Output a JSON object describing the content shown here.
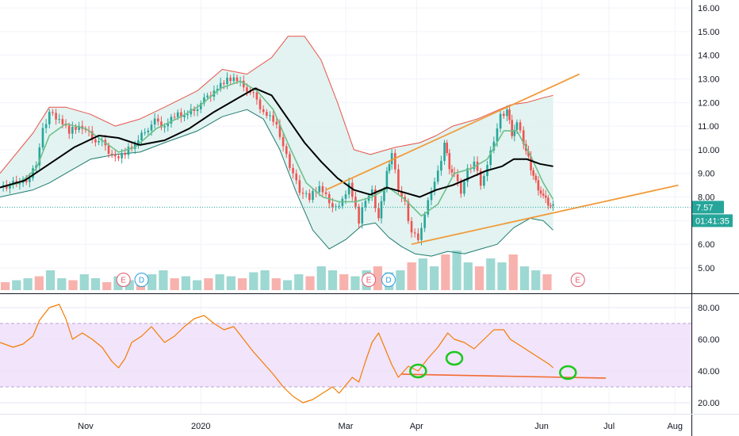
{
  "colors": {
    "candle_up": "#26a69a",
    "candle_down": "#ef5350",
    "vol_up": "#9ed8d2",
    "vol_down": "#f7b2ae",
    "bb_upper": "#e8544b",
    "bb_lower": "#1f7a6f",
    "bb_fill": "#dff2ef",
    "sma_fast": "#6fbf8a",
    "sma_slow": "#000000",
    "trend": "#f29a38",
    "rsi_line": "#f57c00",
    "rsi_band": "#f1e4fb",
    "rsi_band_edge": "#b9a6cf",
    "support": "#f26b2f",
    "marker": "#1ec81e",
    "price_line": "#26a69a",
    "earnings": "#e05a6d",
    "dividend": "#2c9be0"
  },
  "price_badge": {
    "value": "7.57",
    "timer": "01:41:35"
  },
  "flags": [
    {
      "type": "earnings",
      "label": "E",
      "date": 75
    },
    {
      "type": "dividend",
      "label": "D",
      "date": 86
    },
    {
      "type": "earnings",
      "label": "E",
      "date": 224
    },
    {
      "type": "dividend",
      "label": "D",
      "date": 236
    },
    {
      "type": "earnings",
      "label": "E",
      "date": 351
    }
  ],
  "chart_data": [
    {
      "type": "candlestick",
      "panel": "price",
      "ylim": [
        4.4,
        16.4
      ],
      "xlim": [
        0,
        420
      ],
      "yticks": [
        "16.00",
        "15.00",
        "14.00",
        "13.00",
        "12.00",
        "11.00",
        "10.00",
        "9.00",
        "8.00",
        "6.00",
        "5.00"
      ],
      "last_price": 7.57,
      "series_path": {
        "close": [
          [
            0,
            8.4
          ],
          [
            10,
            8.6
          ],
          [
            18,
            8.8
          ],
          [
            22,
            9.4
          ],
          [
            26,
            10.8
          ],
          [
            30,
            11.6
          ],
          [
            36,
            11.3
          ],
          [
            42,
            10.8
          ],
          [
            50,
            11.0
          ],
          [
            56,
            10.5
          ],
          [
            62,
            10.3
          ],
          [
            70,
            9.6
          ],
          [
            76,
            9.9
          ],
          [
            82,
            10.2
          ],
          [
            88,
            10.8
          ],
          [
            94,
            11.2
          ],
          [
            100,
            11.0
          ],
          [
            106,
            11.5
          ],
          [
            112,
            11.4
          ],
          [
            118,
            11.7
          ],
          [
            124,
            12.1
          ],
          [
            130,
            12.5
          ],
          [
            136,
            12.9
          ],
          [
            142,
            13.0
          ],
          [
            148,
            12.7
          ],
          [
            154,
            12.3
          ],
          [
            160,
            11.6
          ],
          [
            166,
            11.3
          ],
          [
            170,
            10.6
          ],
          [
            174,
            9.7
          ],
          [
            178,
            9.0
          ],
          [
            182,
            8.3
          ],
          [
            188,
            8.0
          ],
          [
            194,
            8.4
          ],
          [
            200,
            7.8
          ],
          [
            206,
            7.5
          ],
          [
            212,
            8.6
          ],
          [
            218,
            7.0
          ],
          [
            222,
            7.9
          ],
          [
            226,
            8.2
          ],
          [
            230,
            7.1
          ],
          [
            235,
            9.1
          ],
          [
            238,
            9.8
          ],
          [
            242,
            8.3
          ],
          [
            246,
            7.7
          ],
          [
            250,
            6.5
          ],
          [
            254,
            6.3
          ],
          [
            258,
            7.2
          ],
          [
            262,
            8.3
          ],
          [
            266,
            9.0
          ],
          [
            270,
            10.3
          ],
          [
            273,
            9.3
          ],
          [
            276,
            8.9
          ],
          [
            280,
            8.2
          ],
          [
            284,
            9.1
          ],
          [
            288,
            9.5
          ],
          [
            292,
            8.6
          ],
          [
            296,
            9.3
          ],
          [
            300,
            10.4
          ],
          [
            304,
            11.4
          ],
          [
            308,
            11.7
          ],
          [
            311,
            10.7
          ],
          [
            314,
            11.1
          ],
          [
            318,
            10.3
          ],
          [
            321,
            9.6
          ],
          [
            324,
            8.9
          ],
          [
            327,
            8.4
          ],
          [
            330,
            8.0
          ],
          [
            333,
            7.7
          ],
          [
            336,
            7.57
          ]
        ]
      },
      "bollinger": {
        "upper": [
          [
            0,
            9.0
          ],
          [
            20,
            10.7
          ],
          [
            30,
            11.8
          ],
          [
            40,
            11.8
          ],
          [
            55,
            11.5
          ],
          [
            70,
            11.0
          ],
          [
            85,
            11.3
          ],
          [
            100,
            11.8
          ],
          [
            120,
            12.5
          ],
          [
            135,
            13.4
          ],
          [
            150,
            13.2
          ],
          [
            165,
            13.9
          ],
          [
            175,
            14.8
          ],
          [
            185,
            14.8
          ],
          [
            195,
            13.8
          ],
          [
            205,
            12.0
          ],
          [
            215,
            10.0
          ],
          [
            225,
            9.8
          ],
          [
            240,
            10.1
          ],
          [
            255,
            10.3
          ],
          [
            265,
            10.6
          ],
          [
            275,
            11.0
          ],
          [
            290,
            11.3
          ],
          [
            300,
            11.6
          ],
          [
            310,
            11.9
          ],
          [
            320,
            12.0
          ],
          [
            330,
            12.2
          ],
          [
            336,
            12.3
          ]
        ],
        "lower": [
          [
            0,
            8.0
          ],
          [
            20,
            8.3
          ],
          [
            30,
            8.6
          ],
          [
            40,
            9.0
          ],
          [
            55,
            9.6
          ],
          [
            70,
            9.8
          ],
          [
            85,
            9.9
          ],
          [
            100,
            10.3
          ],
          [
            120,
            10.8
          ],
          [
            135,
            11.4
          ],
          [
            150,
            11.7
          ],
          [
            160,
            11.3
          ],
          [
            170,
            10.0
          ],
          [
            180,
            8.2
          ],
          [
            190,
            6.6
          ],
          [
            200,
            5.8
          ],
          [
            210,
            6.2
          ],
          [
            220,
            6.8
          ],
          [
            228,
            6.9
          ],
          [
            236,
            6.3
          ],
          [
            244,
            5.9
          ],
          [
            252,
            5.6
          ],
          [
            262,
            5.5
          ],
          [
            272,
            5.7
          ],
          [
            282,
            5.6
          ],
          [
            292,
            5.8
          ],
          [
            302,
            6.0
          ],
          [
            312,
            6.7
          ],
          [
            322,
            7.1
          ],
          [
            330,
            7.0
          ],
          [
            336,
            6.6
          ]
        ],
        "sma": [
          [
            0,
            8.4
          ],
          [
            15,
            8.7
          ],
          [
            30,
            9.4
          ],
          [
            45,
            10.1
          ],
          [
            60,
            10.6
          ],
          [
            72,
            10.5
          ],
          [
            85,
            10.2
          ],
          [
            100,
            10.4
          ],
          [
            115,
            10.9
          ],
          [
            130,
            11.6
          ],
          [
            145,
            12.2
          ],
          [
            155,
            12.6
          ],
          [
            165,
            12.3
          ],
          [
            175,
            11.3
          ],
          [
            185,
            10.3
          ],
          [
            195,
            9.5
          ],
          [
            205,
            8.8
          ],
          [
            215,
            8.3
          ],
          [
            225,
            8.1
          ],
          [
            235,
            8.4
          ],
          [
            245,
            8.2
          ],
          [
            255,
            8.0
          ],
          [
            265,
            8.3
          ],
          [
            275,
            8.5
          ],
          [
            285,
            8.8
          ],
          [
            295,
            9.1
          ],
          [
            305,
            9.3
          ],
          [
            312,
            9.6
          ],
          [
            320,
            9.6
          ],
          [
            328,
            9.4
          ],
          [
            336,
            9.3
          ]
        ]
      },
      "sma_fast": [
        [
          0,
          8.4
        ],
        [
          12,
          8.6
        ],
        [
          22,
          9.2
        ],
        [
          30,
          10.6
        ],
        [
          40,
          11.1
        ],
        [
          52,
          10.9
        ],
        [
          64,
          10.3
        ],
        [
          72,
          9.9
        ],
        [
          82,
          10.1
        ],
        [
          95,
          10.9
        ],
        [
          110,
          11.4
        ],
        [
          122,
          11.9
        ],
        [
          134,
          12.6
        ],
        [
          146,
          12.9
        ],
        [
          156,
          12.5
        ],
        [
          166,
          11.7
        ],
        [
          176,
          10.1
        ],
        [
          186,
          8.6
        ],
        [
          196,
          8.0
        ],
        [
          206,
          7.8
        ],
        [
          216,
          7.8
        ],
        [
          226,
          8.0
        ],
        [
          236,
          8.4
        ],
        [
          246,
          7.9
        ],
        [
          256,
          7.2
        ],
        [
          266,
          7.7
        ],
        [
          276,
          9.0
        ],
        [
          286,
          9.2
        ],
        [
          296,
          9.6
        ],
        [
          306,
          10.8
        ],
        [
          314,
          10.8
        ],
        [
          322,
          9.8
        ],
        [
          330,
          8.6
        ],
        [
          336,
          7.9
        ]
      ],
      "trendlines": [
        [
          [
            198,
            8.3
          ],
          [
            352,
            13.2
          ]
        ],
        [
          [
            250,
            6.0
          ],
          [
            412,
            8.5
          ]
        ]
      ],
      "volume": [
        0.2,
        0.25,
        0.3,
        0.35,
        0.5,
        0.3,
        0.25,
        0.4,
        0.3,
        0.2,
        0.35,
        0.25,
        0.3,
        0.4,
        0.5,
        0.3,
        0.35,
        0.25,
        0.3,
        0.4,
        0.35,
        0.3,
        0.45,
        0.5,
        0.3,
        0.25,
        0.4,
        0.35,
        0.6,
        0.5,
        0.4,
        0.35,
        0.5,
        0.6,
        0.45,
        0.5,
        0.7,
        0.8,
        0.6,
        0.9,
        1.0,
        0.7,
        0.6,
        0.8,
        0.7,
        0.9,
        0.6,
        0.5,
        0.4
      ]
    },
    {
      "type": "line",
      "panel": "rsi",
      "ylim": [
        14,
        88
      ],
      "xlim": [
        0,
        420
      ],
      "yticks": [
        "80.00",
        "60.00",
        "40.00",
        "20.00"
      ],
      "band": [
        30,
        70
      ],
      "midline": 50,
      "values": [
        [
          0,
          58
        ],
        [
          8,
          55
        ],
        [
          14,
          57
        ],
        [
          20,
          62
        ],
        [
          24,
          72
        ],
        [
          30,
          80
        ],
        [
          36,
          82
        ],
        [
          40,
          73
        ],
        [
          44,
          60
        ],
        [
          50,
          64
        ],
        [
          56,
          60
        ],
        [
          62,
          55
        ],
        [
          68,
          46
        ],
        [
          72,
          42
        ],
        [
          76,
          48
        ],
        [
          80,
          58
        ],
        [
          86,
          62
        ],
        [
          92,
          68
        ],
        [
          96,
          63
        ],
        [
          100,
          58
        ],
        [
          106,
          62
        ],
        [
          112,
          68
        ],
        [
          118,
          73
        ],
        [
          124,
          75
        ],
        [
          130,
          70
        ],
        [
          136,
          66
        ],
        [
          142,
          68
        ],
        [
          148,
          60
        ],
        [
          154,
          52
        ],
        [
          160,
          45
        ],
        [
          166,
          38
        ],
        [
          172,
          30
        ],
        [
          178,
          24
        ],
        [
          184,
          20
        ],
        [
          190,
          22
        ],
        [
          196,
          26
        ],
        [
          202,
          30
        ],
        [
          206,
          26
        ],
        [
          210,
          31
        ],
        [
          214,
          36
        ],
        [
          218,
          33
        ],
        [
          222,
          46
        ],
        [
          226,
          58
        ],
        [
          230,
          64
        ],
        [
          234,
          54
        ],
        [
          238,
          44
        ],
        [
          242,
          36
        ],
        [
          248,
          43
        ],
        [
          254,
          40
        ],
        [
          260,
          48
        ],
        [
          266,
          55
        ],
        [
          272,
          64
        ],
        [
          276,
          60
        ],
        [
          282,
          58
        ],
        [
          288,
          54
        ],
        [
          294,
          60
        ],
        [
          300,
          66
        ],
        [
          306,
          66
        ],
        [
          310,
          60
        ],
        [
          316,
          56
        ],
        [
          322,
          52
        ],
        [
          328,
          48
        ],
        [
          334,
          44
        ],
        [
          336,
          42
        ]
      ],
      "support_line": [
        [
          244,
          38
        ],
        [
          368,
          35.5
        ]
      ],
      "markers": [
        [
          254,
          40
        ],
        [
          276,
          48
        ],
        [
          345,
          39
        ]
      ]
    }
  ],
  "x_axis": {
    "labels": [
      {
        "label": "Nov",
        "date": 52
      },
      {
        "label": "2020",
        "date": 122
      },
      {
        "label": "Mar",
        "date": 210
      },
      {
        "label": "Apr",
        "date": 253
      },
      {
        "label": "Jun",
        "date": 329
      },
      {
        "label": "Jul",
        "date": 370
      },
      {
        "label": "Aug",
        "date": 410
      }
    ]
  }
}
